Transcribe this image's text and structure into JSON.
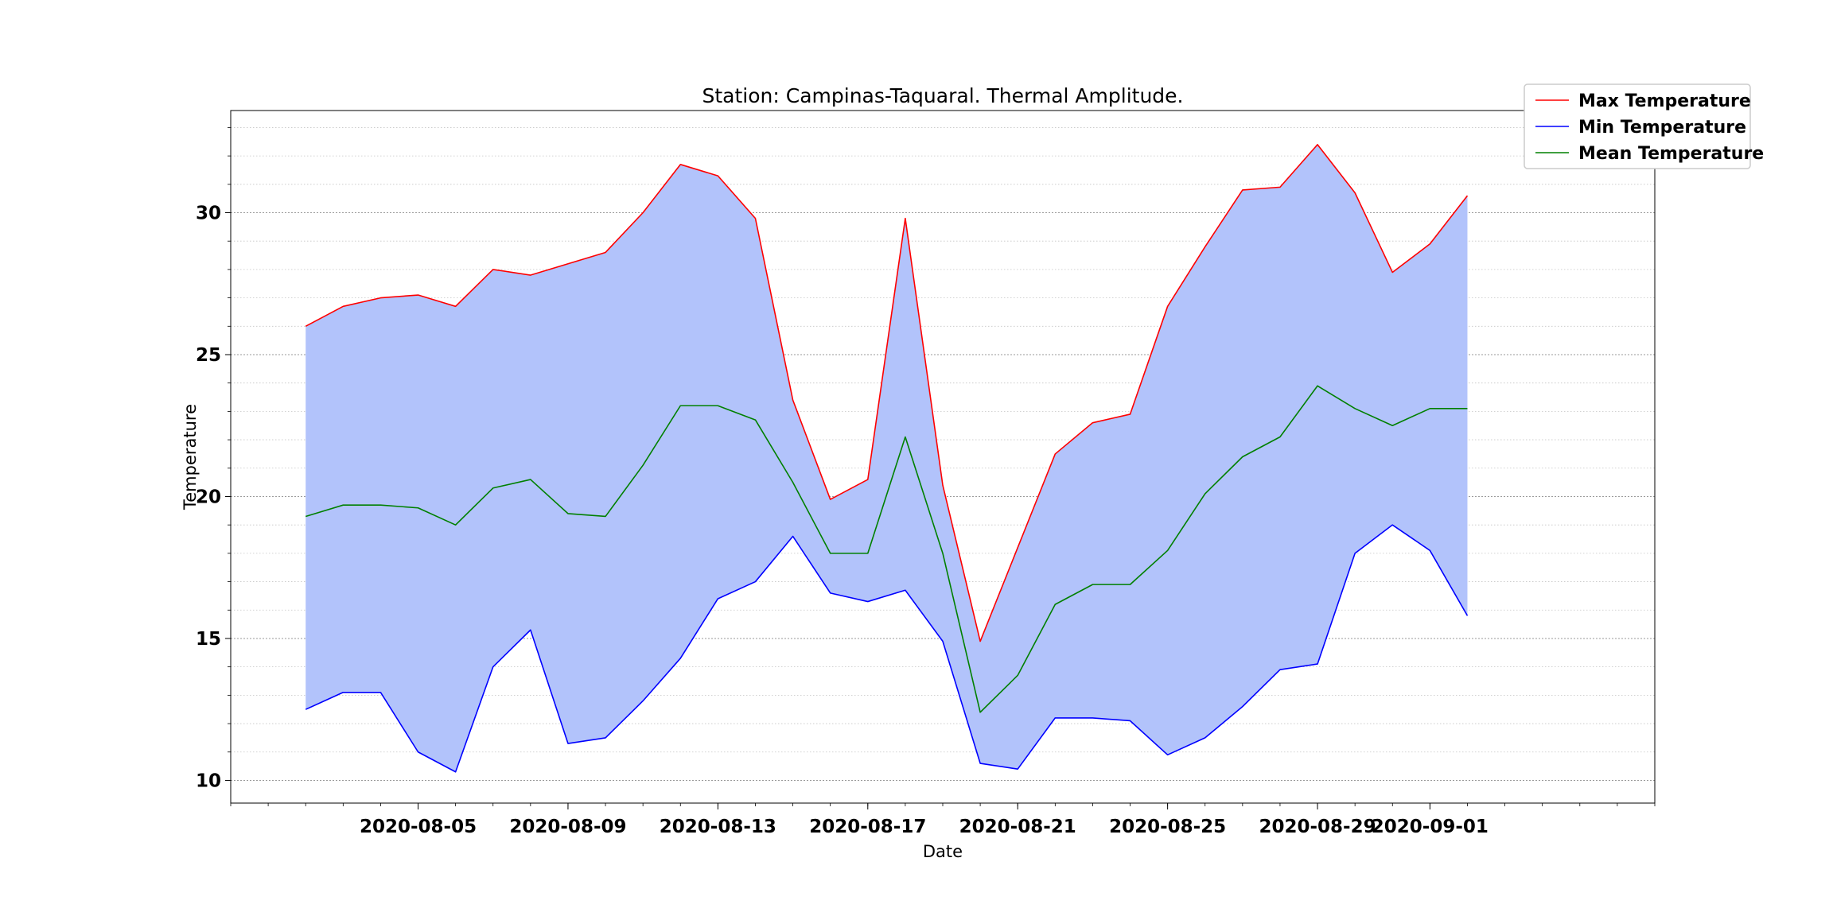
{
  "chart_data": {
    "type": "line",
    "title": "Station: Campinas-Taquaral. Thermal Amplitude.",
    "xlabel": "Date",
    "ylabel": "Temperature",
    "ylim": [
      9.2,
      33.6
    ],
    "xlim": [
      "2020-07-31",
      "2020-09-07"
    ],
    "grid": "horizontal dashed, major and minor",
    "legend_position": "top-right",
    "x": [
      "2020-08-02",
      "2020-08-03",
      "2020-08-04",
      "2020-08-05",
      "2020-08-06",
      "2020-08-07",
      "2020-08-08",
      "2020-08-09",
      "2020-08-10",
      "2020-08-11",
      "2020-08-12",
      "2020-08-13",
      "2020-08-14",
      "2020-08-15",
      "2020-08-16",
      "2020-08-17",
      "2020-08-18",
      "2020-08-19",
      "2020-08-20",
      "2020-08-21",
      "2020-08-22",
      "2020-08-23",
      "2020-08-24",
      "2020-08-25",
      "2020-08-26",
      "2020-08-27",
      "2020-08-28",
      "2020-08-29",
      "2020-08-30",
      "2020-08-31",
      "2020-09-01",
      "2020-09-02",
      "2020-09-03"
    ],
    "x_ticks": [
      "2020-08-05",
      "2020-08-09",
      "2020-08-13",
      "2020-08-17",
      "2020-08-21",
      "2020-08-25",
      "2020-08-29",
      "2020-09-01"
    ],
    "y_ticks": [
      10,
      15,
      20,
      25,
      30
    ],
    "fill_between": {
      "upper": "Max Temperature",
      "lower": "Min Temperature",
      "color": "#b2c3fb"
    },
    "series": [
      {
        "name": "Max Temperature",
        "color": "#ff0000",
        "values": [
          26.0,
          26.7,
          27.0,
          27.1,
          26.7,
          28.0,
          27.8,
          28.2,
          28.6,
          30.0,
          31.7,
          31.3,
          29.8,
          23.4,
          19.9,
          20.6,
          29.8,
          20.4,
          14.9,
          18.2,
          21.5,
          22.6,
          22.9,
          26.7,
          28.8,
          30.8,
          30.9,
          32.4,
          30.7,
          27.9,
          28.9,
          30.6,
          null
        ]
      },
      {
        "name": "Min Temperature",
        "color": "#0000ff",
        "values": [
          12.5,
          13.1,
          13.1,
          11.0,
          10.3,
          14.0,
          15.3,
          11.3,
          11.5,
          12.8,
          14.3,
          16.4,
          17.0,
          18.6,
          16.6,
          16.3,
          16.7,
          14.9,
          10.6,
          10.4,
          12.2,
          12.2,
          12.1,
          10.9,
          11.5,
          12.6,
          13.9,
          14.1,
          18.0,
          19.0,
          18.1,
          15.8,
          null
        ]
      },
      {
        "name": "Mean Temperature",
        "color": "#008000",
        "values": [
          19.3,
          19.7,
          19.7,
          19.6,
          19.0,
          20.3,
          20.6,
          19.4,
          19.3,
          21.1,
          23.2,
          23.2,
          22.7,
          20.5,
          18.0,
          18.0,
          22.1,
          18.0,
          12.4,
          13.7,
          16.2,
          16.9,
          16.9,
          18.1,
          20.1,
          21.4,
          22.1,
          23.9,
          23.1,
          22.5,
          23.1,
          23.1,
          null
        ]
      }
    ]
  }
}
